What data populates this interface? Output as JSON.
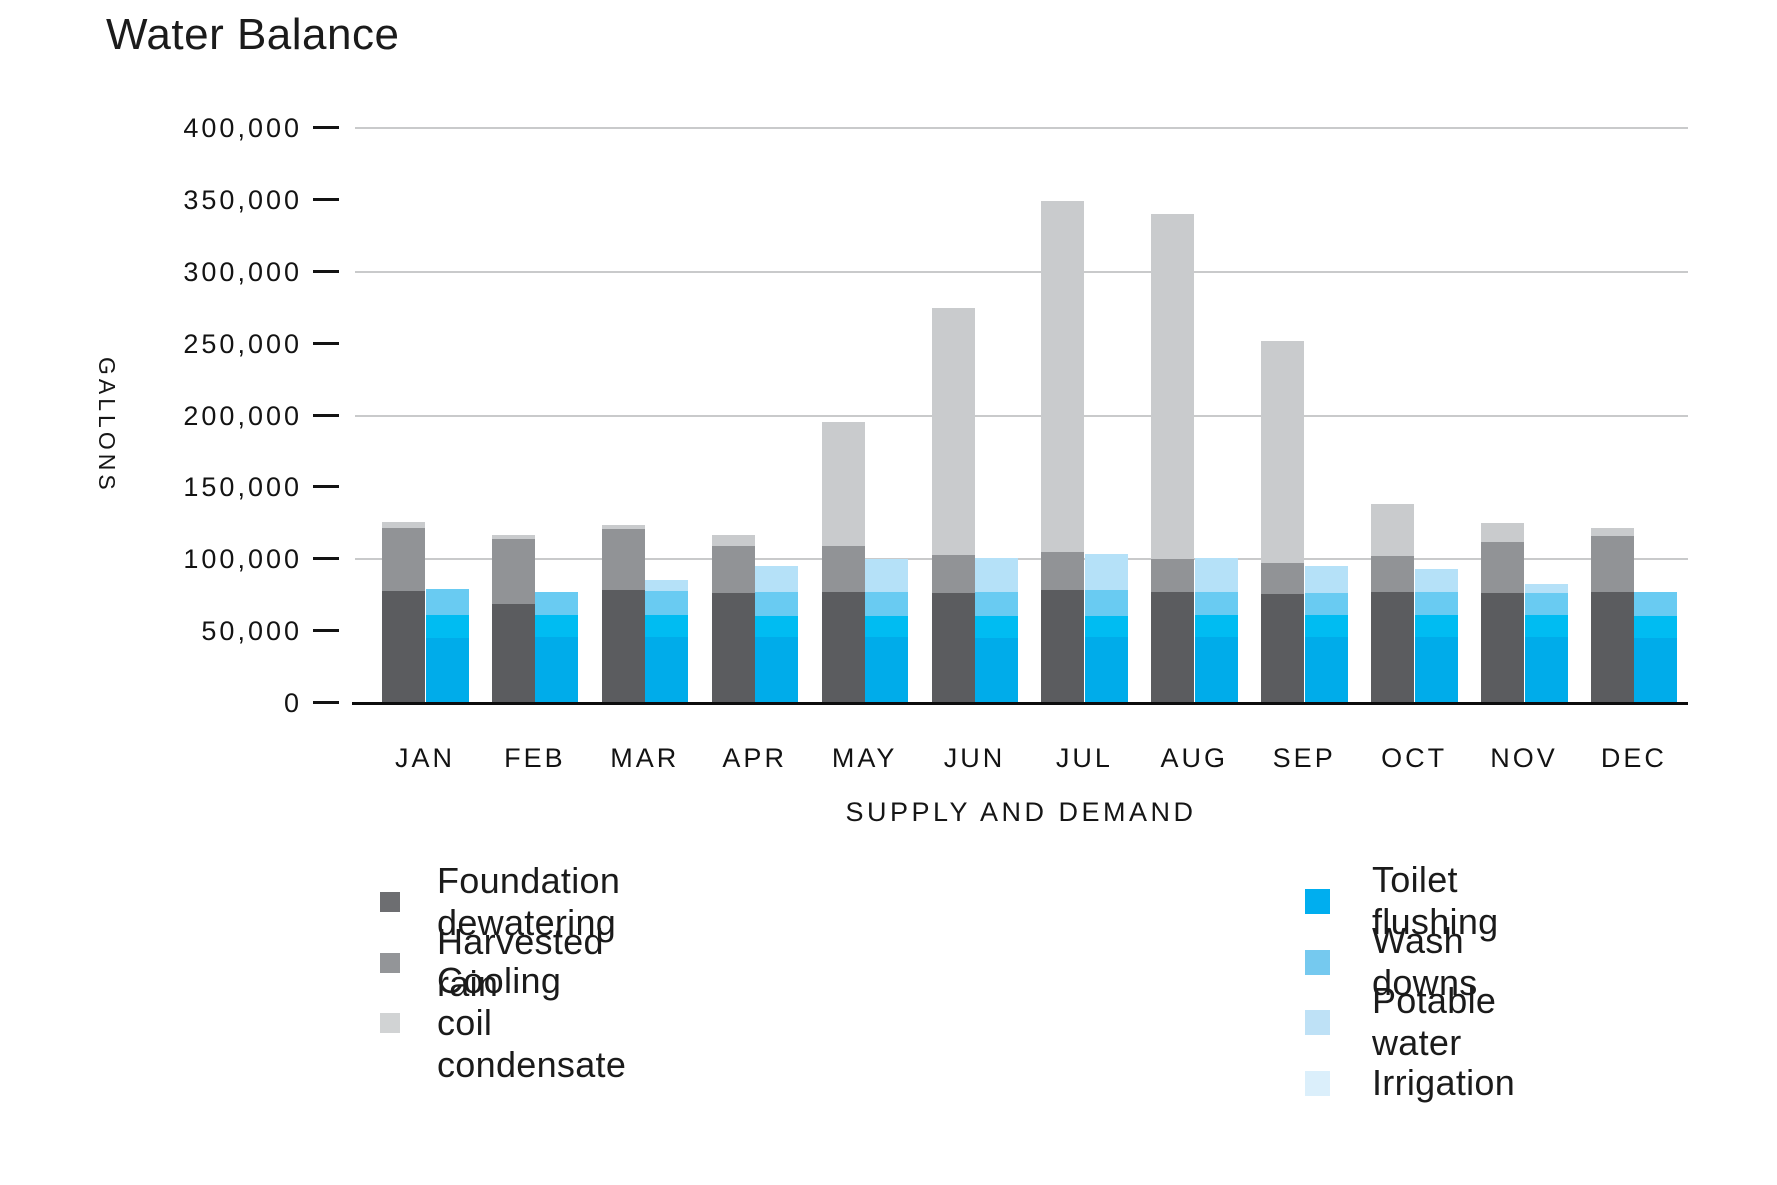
{
  "title": "Water Balance",
  "chart_data": {
    "type": "bar",
    "subtype": "grouped-stacked",
    "title": "Water Balance",
    "xlabel": "SUPPLY AND DEMAND",
    "ylabel": "GALLONS",
    "ylim": [
      0,
      400000
    ],
    "ytick_step": 50000,
    "grid_step": 100000,
    "grid": "horizontal lines every 100,000; tick dashes every 50,000; legend bottom in two columns (supply left, demand right)",
    "categories": [
      "JAN",
      "FEB",
      "MAR",
      "APR",
      "MAY",
      "JUN",
      "JUL",
      "AUG",
      "SEP",
      "OCT",
      "NOV",
      "DEC"
    ],
    "groups": [
      {
        "name": "Supply",
        "series": [
          {
            "name": "Foundation dewatering",
            "color": "#5B5C5F",
            "legend_color": "#6D6E71",
            "values": [
              78000,
              69000,
              78500,
              76500,
              77000,
              76500,
              78500,
              77000,
              76000,
              77000,
              76500,
              77000
            ]
          },
          {
            "name": "Harvested rain",
            "color": "#919396",
            "legend_color": "#939598",
            "values": [
              44000,
              45000,
              42500,
              32500,
              32000,
              26500,
              26500,
              23500,
              21500,
              25500,
              35500,
              39000
            ]
          },
          {
            "name": "Cooling coil condensate",
            "color": "#C9CBCD",
            "legend_color": "#D1D3D4",
            "values": [
              4000,
              3000,
              2500,
              8000,
              86500,
              171500,
              244500,
              239500,
              154500,
              36000,
              13000,
              5500
            ]
          }
        ]
      },
      {
        "name": "Demand",
        "series": [
          {
            "name": "Toilet flushing",
            "color": "#00ACEA",
            "legend_color": "#00AEEF",
            "values": [
              45500,
              46000,
              46000,
              46000,
              46000,
              45500,
              46000,
              46000,
              46000,
              46000,
              46000,
              45500
            ]
          },
          {
            "name": "Wash downs",
            "color": "#00BCF2",
            "legend_color": "#75C9EF",
            "values": [
              16000,
              15500,
              15500,
              14500,
              14500,
              15000,
              14500,
              15000,
              15000,
              15000,
              15000,
              15000
            ]
          },
          {
            "name": "Potable water",
            "color": "#69CBF2",
            "legend_color": "#BEE1F6",
            "values": [
              17500,
              16000,
              16500,
              16500,
              16500,
              16500,
              18000,
              16500,
              15500,
              16500,
              15500,
              17000
            ]
          },
          {
            "name": "Irrigation",
            "color": "#B5E1F8",
            "legend_color": "#DBEFFB",
            "values": [
              0,
              0,
              7500,
              18500,
              23500,
              24000,
              25500,
              23500,
              18500,
              16000,
              6500,
              0
            ]
          }
        ]
      }
    ],
    "colors": {
      "gridline": "#c9cacb",
      "axis_line": "#0d0d0d",
      "text": "#161616"
    }
  }
}
